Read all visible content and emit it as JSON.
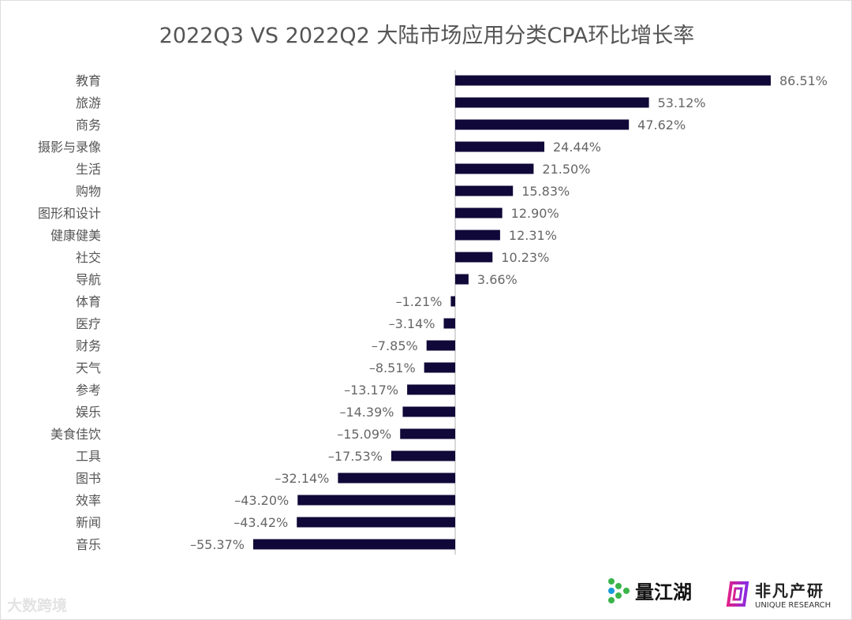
{
  "chart_data": {
    "type": "bar",
    "orientation": "horizontal",
    "title": "2022Q3 VS 2022Q2 大陆市场应用分类CPA环比增长率",
    "categories": [
      "教育",
      "旅游",
      "商务",
      "摄影与录像",
      "生活",
      "购物",
      "图形和设计",
      "健康健美",
      "社交",
      "导航",
      "体育",
      "医疗",
      "财务",
      "天气",
      "参考",
      "娱乐",
      "美食佳饮",
      "工具",
      "图书",
      "效率",
      "新闻",
      "音乐"
    ],
    "values": [
      86.51,
      53.12,
      47.62,
      24.44,
      21.5,
      15.83,
      12.9,
      12.31,
      10.23,
      3.66,
      -1.21,
      -3.14,
      -7.85,
      -8.51,
      -13.17,
      -14.39,
      -15.09,
      -17.53,
      -32.14,
      -43.2,
      -43.42,
      -55.37
    ],
    "labels": [
      "86.51%",
      "53.12%",
      "47.62%",
      "24.44%",
      "21.50%",
      "15.83%",
      "12.90%",
      "12.31%",
      "10.23%",
      "3.66%",
      "–1.21%",
      "–3.14%",
      "–7.85%",
      "–8.51%",
      "–13.17%",
      "–14.39%",
      "–15.09%",
      "–17.53%",
      "–32.14%",
      "–43.20%",
      "–43.42%",
      "–55.37%"
    ],
    "unit": "%",
    "bar_color": "#0f0838",
    "grid": false,
    "legend": "none"
  },
  "logos": {
    "brand1": "量江湖",
    "brand2_cn": "非凡产研",
    "brand2_en": "UNIQUE RESEARCH",
    "watermark": "大数跨境"
  }
}
